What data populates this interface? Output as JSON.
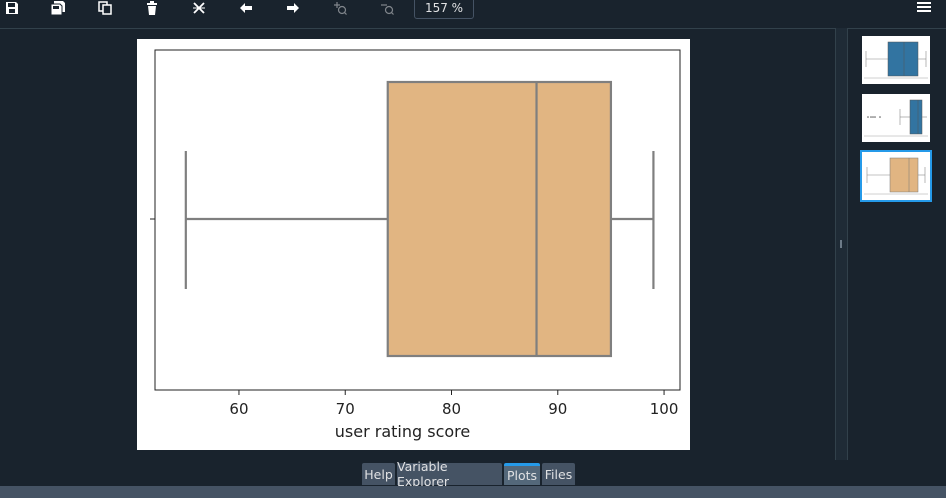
{
  "toolbar": {
    "buttons": [
      {
        "name": "save-icon",
        "enabled": true
      },
      {
        "name": "save-all-icon",
        "enabled": true
      },
      {
        "name": "copy-icon",
        "enabled": true
      },
      {
        "name": "delete-icon",
        "enabled": true
      },
      {
        "name": "delete-all-icon",
        "enabled": true
      },
      {
        "name": "arrow-left-icon",
        "enabled": true
      },
      {
        "name": "arrow-right-icon",
        "enabled": true
      },
      {
        "name": "zoom-in-icon",
        "enabled": false
      },
      {
        "name": "zoom-out-icon",
        "enabled": false
      }
    ],
    "zoom": "157 %",
    "menu_icon": "hamburger-menu-icon"
  },
  "colors": {
    "background": "#19232d",
    "box_fill": "#e1b582",
    "box_stroke": "#7f7f7f",
    "thumb_blue": "#3274a1",
    "active_tab_accent": "#259ae9"
  },
  "chart_data": {
    "type": "boxplot",
    "orientation": "horizontal",
    "xlabel": "user rating score",
    "xlim": [
      52.1,
      101.5
    ],
    "xticks": [
      60,
      70,
      80,
      90,
      100
    ],
    "xtick_labels": [
      "60",
      "70",
      "80",
      "90",
      "100"
    ],
    "whisker_low": 55,
    "q1": 74,
    "median": 88,
    "q3": 95,
    "whisker_high": 99,
    "grid": false
  },
  "thumbnails": [
    {
      "name": "plot-thumbnail-1",
      "color": "#3274a1",
      "selected": false
    },
    {
      "name": "plot-thumbnail-2",
      "color": "#3274a1",
      "selected": false
    },
    {
      "name": "plot-thumbnail-3",
      "color": "#e1b582",
      "selected": true
    }
  ],
  "tabs": [
    {
      "label": "Help",
      "active": false
    },
    {
      "label": "Variable Explorer",
      "active": false
    },
    {
      "label": "Plots",
      "active": true
    },
    {
      "label": "Files",
      "active": false
    }
  ]
}
